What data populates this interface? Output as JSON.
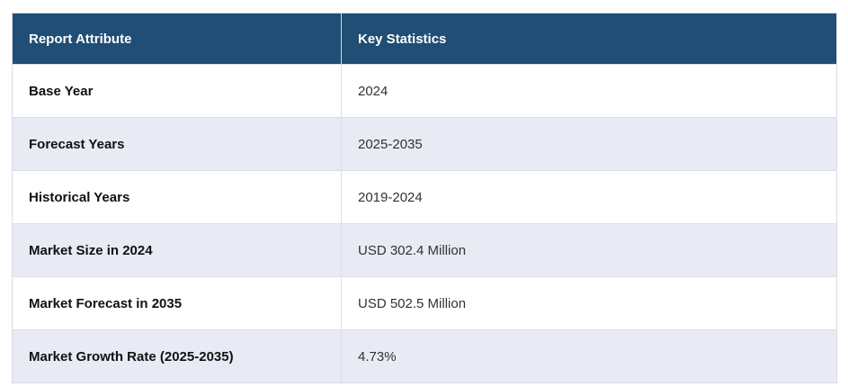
{
  "table": {
    "columns": {
      "attribute_header": "Report Attribute",
      "statistics_header": "Key Statistics"
    },
    "rows": [
      {
        "attribute": "Base Year",
        "value": "2024"
      },
      {
        "attribute": "Forecast Years",
        "value": "2025-2035"
      },
      {
        "attribute": "Historical Years",
        "value": "2019-2024"
      },
      {
        "attribute": "Market Size in 2024",
        "value": "USD 302.4 Million"
      },
      {
        "attribute": "Market Forecast in 2035",
        "value": "USD 502.5 Million"
      },
      {
        "attribute": "Market Growth Rate (2025-2035)",
        "value": "4.73%"
      }
    ]
  },
  "colors": {
    "header_bg": "#204E74",
    "header_text": "#FFFFFF",
    "alt_row_bg": "#E8EAF4",
    "row_bg": "#FFFFFF",
    "border": "#DCDEE8",
    "label_text": "#111111",
    "value_text": "#333333"
  }
}
